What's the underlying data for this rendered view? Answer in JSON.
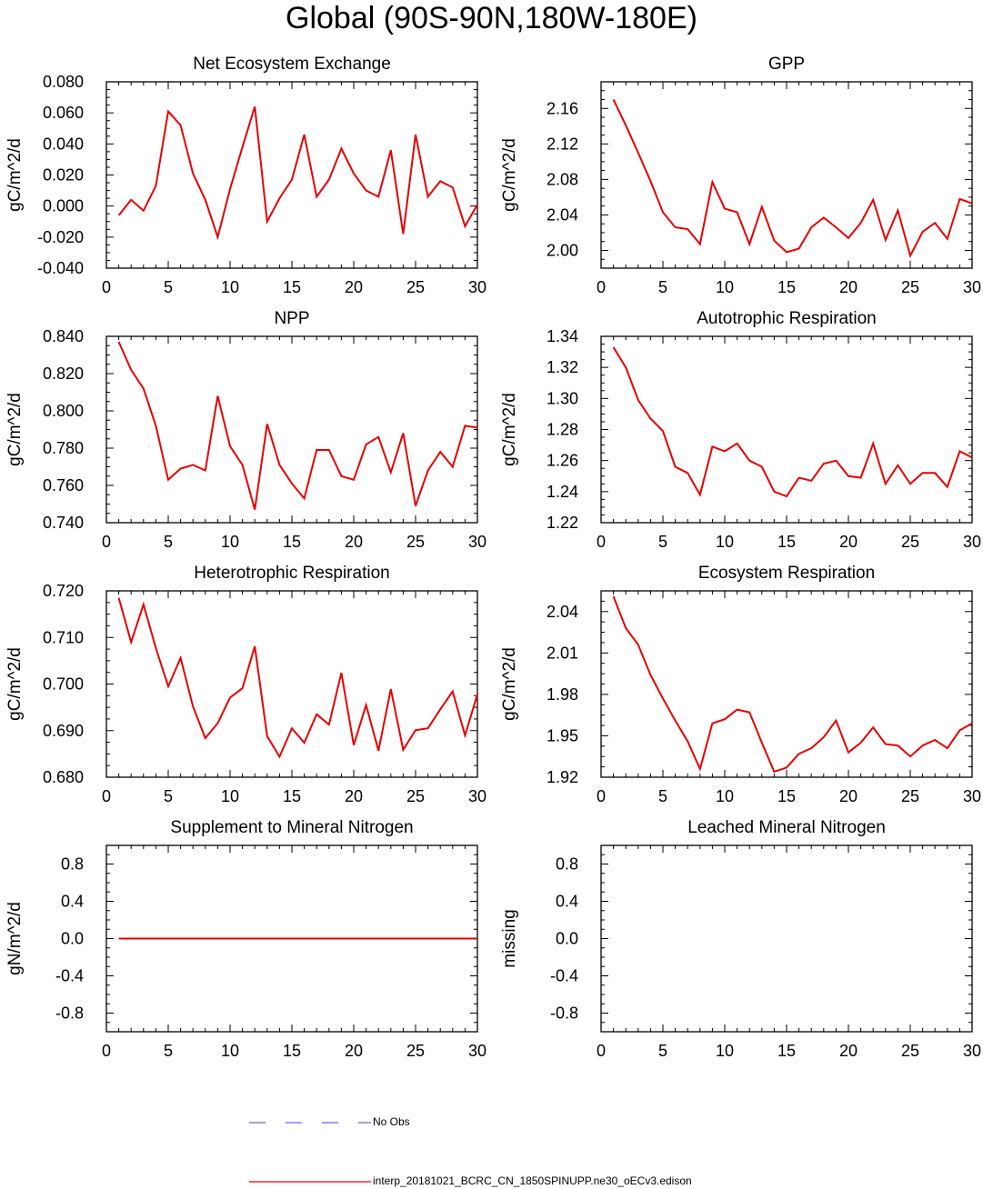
{
  "title": "Global (90S-90N,180W-180E)",
  "colors": {
    "model": "#e60000",
    "obs": "#6666dd",
    "axis": "#000000"
  },
  "legend": {
    "obs_label": "No Obs",
    "model_label": "interp_20181021_BCRC_CN_1850SPINUPP.ne30_oECv3.edison"
  },
  "chart_data": [
    {
      "type": "line",
      "title": "Net Ecosystem Exchange",
      "ylabel": "gC/m^2/d",
      "xlim": [
        0,
        30
      ],
      "ylim": [
        -0.04,
        0.08
      ],
      "xticks": [
        0,
        5,
        10,
        15,
        20,
        25,
        30
      ],
      "yticks": [
        -0.04,
        -0.02,
        0.0,
        0.02,
        0.04,
        0.06,
        0.08
      ],
      "ytick_labels": [
        "-0.040",
        "-0.020",
        "0.000",
        "0.020",
        "0.040",
        "0.060",
        "0.080"
      ],
      "x": [
        1,
        2,
        3,
        4,
        5,
        6,
        7,
        8,
        9,
        10,
        11,
        12,
        13,
        14,
        15,
        16,
        17,
        18,
        19,
        20,
        21,
        22,
        23,
        24,
        25,
        26,
        27,
        28,
        29,
        30
      ],
      "series": [
        {
          "name": "model",
          "values": [
            -0.006,
            0.004,
            -0.003,
            0.013,
            0.061,
            0.052,
            0.021,
            0.004,
            -0.02,
            0.011,
            0.038,
            0.064,
            -0.01,
            0.005,
            0.017,
            0.046,
            0.006,
            0.017,
            0.037,
            0.021,
            0.01,
            0.006,
            0.036,
            -0.018,
            0.046,
            0.006,
            0.016,
            0.012,
            -0.013,
            0.001
          ]
        }
      ]
    },
    {
      "type": "line",
      "title": "GPP",
      "ylabel": "gC/m^2/d",
      "xlim": [
        0,
        30
      ],
      "ylim": [
        1.98,
        2.19
      ],
      "xticks": [
        0,
        5,
        10,
        15,
        20,
        25,
        30
      ],
      "yticks": [
        2.0,
        2.04,
        2.08,
        2.12,
        2.16
      ],
      "ytick_labels": [
        "2.00",
        "2.04",
        "2.08",
        "2.12",
        "2.16"
      ],
      "x": [
        1,
        2,
        3,
        4,
        5,
        6,
        7,
        8,
        9,
        10,
        11,
        12,
        13,
        14,
        15,
        16,
        17,
        18,
        19,
        20,
        21,
        22,
        23,
        24,
        25,
        26,
        27,
        28,
        29,
        30
      ],
      "series": [
        {
          "name": "model",
          "values": [
            2.17,
            2.141,
            2.11,
            2.078,
            2.043,
            2.026,
            2.024,
            2.007,
            2.077,
            2.047,
            2.043,
            2.007,
            2.049,
            2.011,
            1.998,
            2.002,
            2.026,
            2.037,
            2.026,
            2.014,
            2.031,
            2.057,
            2.012,
            2.045,
            1.994,
            2.021,
            2.031,
            2.013,
            2.058,
            2.053
          ]
        }
      ]
    },
    {
      "type": "line",
      "title": "NPP",
      "ylabel": "gC/m^2/d",
      "xlim": [
        0,
        30
      ],
      "ylim": [
        0.74,
        0.84
      ],
      "xticks": [
        0,
        5,
        10,
        15,
        20,
        25,
        30
      ],
      "yticks": [
        0.74,
        0.76,
        0.78,
        0.8,
        0.82,
        0.84
      ],
      "ytick_labels": [
        "0.740",
        "0.760",
        "0.780",
        "0.800",
        "0.820",
        "0.840"
      ],
      "x": [
        1,
        2,
        3,
        4,
        5,
        6,
        7,
        8,
        9,
        10,
        11,
        12,
        13,
        14,
        15,
        16,
        17,
        18,
        19,
        20,
        21,
        22,
        23,
        24,
        25,
        26,
        27,
        28,
        29,
        30
      ],
      "series": [
        {
          "name": "model",
          "values": [
            0.837,
            0.822,
            0.812,
            0.792,
            0.763,
            0.769,
            0.771,
            0.768,
            0.808,
            0.781,
            0.771,
            0.747,
            0.793,
            0.771,
            0.761,
            0.753,
            0.779,
            0.779,
            0.765,
            0.763,
            0.782,
            0.786,
            0.767,
            0.788,
            0.749,
            0.768,
            0.778,
            0.77,
            0.792,
            0.791
          ]
        }
      ]
    },
    {
      "type": "line",
      "title": "Autotrophic Respiration",
      "ylabel": "gC/m^2/d",
      "xlim": [
        0,
        30
      ],
      "ylim": [
        1.22,
        1.34
      ],
      "xticks": [
        0,
        5,
        10,
        15,
        20,
        25,
        30
      ],
      "yticks": [
        1.22,
        1.24,
        1.26,
        1.28,
        1.3,
        1.32,
        1.34
      ],
      "ytick_labels": [
        "1.22",
        "1.24",
        "1.26",
        "1.28",
        "1.30",
        "1.32",
        "1.34"
      ],
      "x": [
        1,
        2,
        3,
        4,
        5,
        6,
        7,
        8,
        9,
        10,
        11,
        12,
        13,
        14,
        15,
        16,
        17,
        18,
        19,
        20,
        21,
        22,
        23,
        24,
        25,
        26,
        27,
        28,
        29,
        30
      ],
      "series": [
        {
          "name": "model",
          "values": [
            1.333,
            1.32,
            1.299,
            1.287,
            1.279,
            1.256,
            1.252,
            1.238,
            1.269,
            1.266,
            1.271,
            1.26,
            1.256,
            1.24,
            1.237,
            1.249,
            1.247,
            1.258,
            1.26,
            1.25,
            1.249,
            1.271,
            1.245,
            1.257,
            1.245,
            1.252,
            1.252,
            1.243,
            1.266,
            1.262
          ]
        }
      ]
    },
    {
      "type": "line",
      "title": "Heterotrophic Respiration",
      "ylabel": "gC/m^2/d",
      "xlim": [
        0,
        30
      ],
      "ylim": [
        0.68,
        0.72
      ],
      "xticks": [
        0,
        5,
        10,
        15,
        20,
        25,
        30
      ],
      "yticks": [
        0.68,
        0.69,
        0.7,
        0.71,
        0.72
      ],
      "ytick_labels": [
        "0.680",
        "0.690",
        "0.700",
        "0.710",
        "0.720"
      ],
      "x": [
        1,
        2,
        3,
        4,
        5,
        6,
        7,
        8,
        9,
        10,
        11,
        12,
        13,
        14,
        15,
        16,
        17,
        18,
        19,
        20,
        21,
        22,
        23,
        24,
        25,
        26,
        27,
        28,
        29,
        30
      ],
      "series": [
        {
          "name": "model",
          "values": [
            0.7185,
            0.709,
            0.7171,
            0.7077,
            0.6995,
            0.7056,
            0.6952,
            0.6884,
            0.6916,
            0.6971,
            0.6991,
            0.7081,
            0.6888,
            0.6844,
            0.6905,
            0.6874,
            0.6935,
            0.6913,
            0.7024,
            0.6869,
            0.6955,
            0.6857,
            0.6989,
            0.6859,
            0.6901,
            0.6905,
            0.6946,
            0.6984,
            0.689,
            0.6978
          ]
        }
      ]
    },
    {
      "type": "line",
      "title": "Ecosystem Respiration",
      "ylabel": "gC/m^2/d",
      "xlim": [
        0,
        30
      ],
      "ylim": [
        1.92,
        2.055
      ],
      "xticks": [
        0,
        5,
        10,
        15,
        20,
        25,
        30
      ],
      "yticks": [
        1.92,
        1.95,
        1.98,
        2.01,
        2.04
      ],
      "ytick_labels": [
        "1.92",
        "1.95",
        "1.98",
        "2.01",
        "2.04"
      ],
      "x": [
        1,
        2,
        3,
        4,
        5,
        6,
        7,
        8,
        9,
        10,
        11,
        12,
        13,
        14,
        15,
        16,
        17,
        18,
        19,
        20,
        21,
        22,
        23,
        24,
        25,
        26,
        27,
        28,
        29,
        30
      ],
      "series": [
        {
          "name": "model",
          "values": [
            2.051,
            2.028,
            2.016,
            1.994,
            1.977,
            1.961,
            1.946,
            1.926,
            1.959,
            1.962,
            1.969,
            1.967,
            1.945,
            1.924,
            1.927,
            1.937,
            1.941,
            1.949,
            1.961,
            1.938,
            1.945,
            1.956,
            1.944,
            1.943,
            1.935,
            1.943,
            1.947,
            1.941,
            1.954,
            1.959
          ]
        }
      ]
    },
    {
      "type": "line",
      "title": "Supplement to Mineral Nitrogen",
      "ylabel": "gN/m^2/d",
      "xlim": [
        0,
        30
      ],
      "ylim": [
        -1.0,
        1.0
      ],
      "xticks": [
        0,
        5,
        10,
        15,
        20,
        25,
        30
      ],
      "yticks": [
        -0.8,
        -0.4,
        0.0,
        0.4,
        0.8
      ],
      "ytick_labels": [
        "-0.8",
        "-0.4",
        "0.0",
        "0.4",
        "0.8"
      ],
      "x": [
        1,
        2,
        3,
        4,
        5,
        6,
        7,
        8,
        9,
        10,
        11,
        12,
        13,
        14,
        15,
        16,
        17,
        18,
        19,
        20,
        21,
        22,
        23,
        24,
        25,
        26,
        27,
        28,
        29,
        30
      ],
      "series": [
        {
          "name": "model",
          "values": [
            0,
            0,
            0,
            0,
            0,
            0,
            0,
            0,
            0,
            0,
            0,
            0,
            0,
            0,
            0,
            0,
            0,
            0,
            0,
            0,
            0,
            0,
            0,
            0,
            0,
            0,
            0,
            0,
            0,
            0
          ]
        }
      ]
    },
    {
      "type": "line",
      "title": "Leached Mineral Nitrogen",
      "ylabel": "missing",
      "xlim": [
        0,
        30
      ],
      "ylim": [
        -1.0,
        1.0
      ],
      "xticks": [
        0,
        5,
        10,
        15,
        20,
        25,
        30
      ],
      "yticks": [
        -0.8,
        -0.4,
        0.0,
        0.4,
        0.8
      ],
      "ytick_labels": [
        "-0.8",
        "-0.4",
        "0.0",
        "0.4",
        "0.8"
      ],
      "x": [],
      "series": []
    }
  ]
}
